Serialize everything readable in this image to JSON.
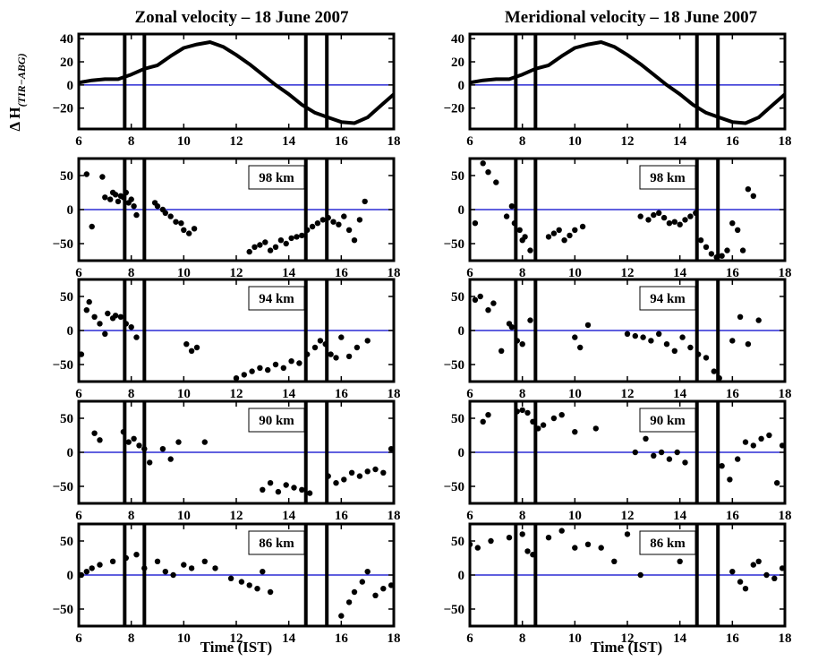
{
  "colors": {
    "zero_line": "#0000cc",
    "data": "#000000",
    "box": "#000000",
    "background": "#ffffff"
  },
  "y_axis_label": {
    "main": "Δ H",
    "sub": "(TIR−ABG)"
  },
  "columns": [
    {
      "title": "Zonal velocity  – 18 June 2007",
      "xlabel": "Time (IST)"
    },
    {
      "title": "Meridional velocity  – 18 June 2007",
      "xlabel": "Time (IST)"
    }
  ],
  "chart_data": [
    {
      "type": "line",
      "column": "Zonal velocity",
      "row": 0,
      "xlim": [
        6,
        18
      ],
      "ylim": [
        -38,
        44
      ],
      "xticks": [
        6,
        8,
        10,
        12,
        14,
        16,
        18
      ],
      "yticks": [
        40,
        20,
        0,
        -20
      ],
      "vlines": [
        7.75,
        8.5,
        14.65,
        15.45
      ],
      "series": [
        {
          "x": [
            6,
            6.5,
            7,
            7.5,
            8,
            8.5,
            9,
            9.5,
            10,
            10.5,
            11,
            11.5,
            12,
            12.5,
            13,
            13.5,
            14,
            14.5,
            15,
            15.5,
            16,
            16.5,
            17,
            17.5,
            18
          ],
          "y": [
            2,
            4,
            5,
            5,
            9,
            14,
            17,
            25,
            32,
            35,
            37,
            33,
            26,
            18,
            9,
            0,
            -8,
            -17,
            -24,
            -28,
            -32,
            -33,
            -28,
            -18,
            -8
          ]
        }
      ]
    },
    {
      "type": "line",
      "column": "Meridional velocity",
      "row": 0,
      "xlim": [
        6,
        18
      ],
      "ylim": [
        -38,
        44
      ],
      "xticks": [
        6,
        8,
        10,
        12,
        14,
        16,
        18
      ],
      "yticks": [
        40,
        20,
        0,
        -20
      ],
      "vlines": [
        7.75,
        8.5,
        14.65,
        15.45
      ],
      "series": [
        {
          "x": [
            6,
            6.5,
            7,
            7.5,
            8,
            8.5,
            9,
            9.5,
            10,
            10.5,
            11,
            11.5,
            12,
            12.5,
            13,
            13.5,
            14,
            14.5,
            15,
            15.5,
            16,
            16.5,
            17,
            17.5,
            18
          ],
          "y": [
            2,
            4,
            5,
            5,
            9,
            14,
            17,
            25,
            32,
            35,
            37,
            33,
            26,
            18,
            9,
            0,
            -8,
            -17,
            -24,
            -28,
            -32,
            -33,
            -28,
            -18,
            -8
          ]
        }
      ]
    },
    {
      "type": "scatter",
      "column": "Zonal velocity",
      "row": 1,
      "label": "98 km",
      "xlim": [
        6,
        18
      ],
      "ylim": [
        -75,
        75
      ],
      "xticks": [
        6,
        8,
        10,
        12,
        14,
        16,
        18
      ],
      "yticks": [
        50,
        0,
        -50
      ],
      "vlines": [
        7.75,
        8.5,
        14.65,
        15.45
      ],
      "series": [
        {
          "x": [
            6.3,
            6.5,
            6.9,
            7.0,
            7.2,
            7.3,
            7.4,
            7.5,
            7.6,
            7.7,
            7.8,
            7.9,
            8.0,
            8.1,
            8.2,
            8.9,
            9.0,
            9.2,
            9.3,
            9.5,
            9.7,
            9.9,
            10.0,
            10.2,
            10.4,
            12.5,
            12.7,
            12.9,
            13.1,
            13.3,
            13.5,
            13.7,
            13.9,
            14.1,
            14.3,
            14.5,
            14.7,
            14.9,
            15.1,
            15.3,
            15.5,
            15.7,
            15.9,
            16.1,
            16.3,
            16.5,
            16.7,
            16.9
          ],
          "y": [
            52,
            -25,
            48,
            18,
            15,
            25,
            22,
            12,
            20,
            18,
            25,
            10,
            15,
            5,
            -8,
            10,
            5,
            0,
            -5,
            -10,
            -18,
            -20,
            -30,
            -35,
            -28,
            -62,
            -55,
            -52,
            -48,
            -60,
            -55,
            -45,
            -50,
            -42,
            -40,
            -38,
            -30,
            -25,
            -20,
            -15,
            -12,
            -18,
            -22,
            -10,
            -30,
            -45,
            -15,
            12
          ]
        }
      ]
    },
    {
      "type": "scatter",
      "column": "Meridional velocity",
      "row": 1,
      "label": "98 km",
      "xlim": [
        6,
        18
      ],
      "ylim": [
        -75,
        75
      ],
      "xticks": [
        6,
        8,
        10,
        12,
        14,
        16,
        18
      ],
      "yticks": [
        50,
        0,
        -50
      ],
      "vlines": [
        7.75,
        8.5,
        14.65,
        15.45
      ],
      "series": [
        {
          "x": [
            6.2,
            6.5,
            6.7,
            7.0,
            7.4,
            7.6,
            7.7,
            7.9,
            8.0,
            8.1,
            8.3,
            9.0,
            9.2,
            9.4,
            9.6,
            9.8,
            10.0,
            10.3,
            12.5,
            12.8,
            13.0,
            13.2,
            13.4,
            13.6,
            13.8,
            14.0,
            14.2,
            14.4,
            14.6,
            14.8,
            15.0,
            15.2,
            15.4,
            15.6,
            15.8,
            16.0,
            16.2,
            16.4,
            16.6,
            16.8
          ],
          "y": [
            -20,
            68,
            55,
            40,
            -10,
            5,
            -20,
            -30,
            -45,
            -40,
            -60,
            -40,
            -35,
            -30,
            -45,
            -38,
            -30,
            -25,
            -10,
            -15,
            -8,
            -5,
            -12,
            -20,
            -18,
            -22,
            -15,
            -10,
            -5,
            -45,
            -55,
            -65,
            -70,
            -68,
            -60,
            -20,
            -30,
            -60,
            30,
            20
          ]
        }
      ]
    },
    {
      "type": "scatter",
      "column": "Zonal velocity",
      "row": 2,
      "label": "94 km",
      "xlim": [
        6,
        18
      ],
      "ylim": [
        -75,
        75
      ],
      "xticks": [
        6,
        8,
        10,
        12,
        14,
        16,
        18
      ],
      "yticks": [
        50,
        0,
        -50
      ],
      "vlines": [
        7.75,
        8.5,
        14.65,
        15.45
      ],
      "series": [
        {
          "x": [
            6.1,
            6.3,
            6.4,
            6.6,
            6.8,
            7.0,
            7.1,
            7.3,
            7.4,
            7.6,
            7.8,
            8.0,
            8.2,
            10.1,
            10.3,
            10.5,
            12.0,
            12.3,
            12.6,
            12.9,
            13.2,
            13.5,
            13.8,
            14.1,
            14.4,
            14.7,
            15.0,
            15.2,
            15.4,
            15.6,
            15.8,
            16.0,
            16.3,
            16.6,
            17.0
          ],
          "y": [
            -35,
            30,
            42,
            20,
            10,
            -5,
            25,
            18,
            22,
            20,
            10,
            5,
            -10,
            -20,
            -30,
            -25,
            -70,
            -65,
            -60,
            -55,
            -58,
            -50,
            -55,
            -45,
            -48,
            -35,
            -25,
            -15,
            -20,
            -35,
            -40,
            -10,
            -38,
            -25,
            -15
          ]
        }
      ]
    },
    {
      "type": "scatter",
      "column": "Meridional velocity",
      "row": 2,
      "label": "94 km",
      "xlim": [
        6,
        18
      ],
      "ylim": [
        -75,
        75
      ],
      "xticks": [
        6,
        8,
        10,
        12,
        14,
        16,
        18
      ],
      "yticks": [
        50,
        0,
        -50
      ],
      "vlines": [
        7.75,
        8.5,
        14.65,
        15.45
      ],
      "series": [
        {
          "x": [
            6.2,
            6.4,
            6.7,
            6.9,
            7.2,
            7.5,
            7.6,
            7.8,
            8.0,
            8.3,
            10.0,
            10.2,
            10.5,
            12.0,
            12.3,
            12.6,
            12.9,
            13.2,
            13.5,
            13.8,
            14.1,
            14.4,
            14.7,
            15.0,
            15.3,
            15.5,
            16.0,
            16.3,
            16.6,
            17.0
          ],
          "y": [
            45,
            50,
            30,
            40,
            -30,
            10,
            5,
            -15,
            -20,
            15,
            -10,
            -25,
            8,
            -5,
            -8,
            -10,
            -15,
            -5,
            -20,
            -30,
            -10,
            -25,
            -35,
            -40,
            -60,
            -70,
            -15,
            20,
            -20,
            15
          ]
        }
      ]
    },
    {
      "type": "scatter",
      "column": "Zonal velocity",
      "row": 3,
      "label": "90 km",
      "xlim": [
        6,
        18
      ],
      "ylim": [
        -75,
        75
      ],
      "xticks": [
        6,
        8,
        10,
        12,
        14,
        16,
        18
      ],
      "yticks": [
        50,
        0,
        -50
      ],
      "vlines": [
        7.75,
        8.5,
        14.65,
        15.45
      ],
      "series": [
        {
          "x": [
            6.6,
            6.8,
            7.7,
            7.9,
            8.1,
            8.3,
            8.5,
            8.7,
            9.2,
            9.5,
            9.8,
            10.8,
            13.0,
            13.3,
            13.6,
            13.9,
            14.2,
            14.5,
            14.8,
            15.5,
            15.8,
            16.1,
            16.4,
            16.7,
            17.0,
            17.3,
            17.6,
            17.9
          ],
          "y": [
            28,
            18,
            30,
            15,
            20,
            10,
            5,
            -15,
            5,
            -10,
            15,
            15,
            -55,
            -45,
            -58,
            -48,
            -52,
            -55,
            -60,
            -35,
            -45,
            -40,
            -30,
            -35,
            -28,
            -25,
            -30,
            5
          ]
        }
      ]
    },
    {
      "type": "scatter",
      "column": "Meridional velocity",
      "row": 3,
      "label": "90 km",
      "xlim": [
        6,
        18
      ],
      "ylim": [
        -75,
        75
      ],
      "xticks": [
        6,
        8,
        10,
        12,
        14,
        16,
        18
      ],
      "yticks": [
        50,
        0,
        -50
      ],
      "vlines": [
        7.75,
        8.5,
        14.65,
        15.45
      ],
      "series": [
        {
          "x": [
            6.5,
            6.7,
            7.8,
            8.0,
            8.2,
            8.4,
            8.6,
            8.8,
            9.2,
            9.5,
            10.0,
            10.8,
            12.3,
            12.7,
            13.0,
            13.3,
            13.6,
            13.9,
            14.2,
            14.5,
            15.6,
            15.9,
            16.2,
            16.5,
            16.8,
            17.1,
            17.4,
            17.7,
            17.9
          ],
          "y": [
            45,
            55,
            60,
            62,
            58,
            45,
            35,
            40,
            50,
            55,
            30,
            35,
            0,
            20,
            -5,
            0,
            -10,
            0,
            -15,
            50,
            -20,
            -40,
            -10,
            15,
            10,
            20,
            25,
            -45,
            10
          ]
        }
      ]
    },
    {
      "type": "scatter",
      "column": "Zonal velocity",
      "row": 4,
      "label": "86 km",
      "xlim": [
        6,
        18
      ],
      "ylim": [
        -75,
        75
      ],
      "xticks": [
        6,
        8,
        10,
        12,
        14,
        16,
        18
      ],
      "yticks": [
        50,
        0,
        -50
      ],
      "vlines": [
        7.75,
        8.5,
        14.65,
        15.45
      ],
      "series": [
        {
          "x": [
            6.1,
            6.3,
            6.5,
            6.8,
            7.3,
            7.8,
            8.2,
            8.5,
            9.0,
            9.3,
            9.6,
            10.0,
            10.3,
            10.8,
            11.2,
            11.8,
            12.2,
            12.5,
            12.8,
            13.0,
            13.3,
            16.0,
            16.3,
            16.5,
            16.8,
            17.0,
            17.3,
            17.6,
            17.9
          ],
          "y": [
            0,
            5,
            10,
            15,
            20,
            25,
            30,
            10,
            20,
            5,
            0,
            15,
            10,
            20,
            10,
            -5,
            -10,
            -15,
            -20,
            5,
            -25,
            -60,
            -40,
            -25,
            -10,
            5,
            -30,
            -20,
            -15
          ]
        }
      ]
    },
    {
      "type": "scatter",
      "column": "Meridional velocity",
      "row": 4,
      "label": "86 km",
      "xlim": [
        6,
        18
      ],
      "ylim": [
        -75,
        75
      ],
      "xticks": [
        6,
        8,
        10,
        12,
        14,
        16,
        18
      ],
      "yticks": [
        50,
        0,
        -50
      ],
      "vlines": [
        7.75,
        8.5,
        14.65,
        15.45
      ],
      "series": [
        {
          "x": [
            6.0,
            6.3,
            6.8,
            7.5,
            8.0,
            8.2,
            8.4,
            9.0,
            9.5,
            10.0,
            10.5,
            11.0,
            11.5,
            12.0,
            12.5,
            13.0,
            13.5,
            14.0,
            16.0,
            16.3,
            16.5,
            16.8,
            17.0,
            17.3,
            17.6,
            17.9
          ],
          "y": [
            45,
            40,
            50,
            55,
            60,
            35,
            30,
            55,
            65,
            40,
            45,
            40,
            20,
            60,
            0,
            55,
            45,
            20,
            5,
            -10,
            -20,
            15,
            20,
            0,
            -5,
            10
          ]
        }
      ]
    }
  ],
  "altitude_labels": [
    "98 km",
    "94 km",
    "90 km",
    "86 km"
  ]
}
